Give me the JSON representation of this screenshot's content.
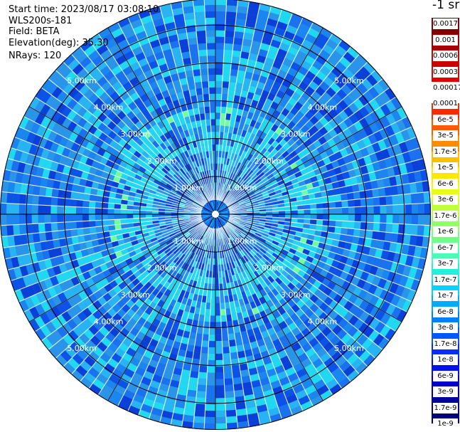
{
  "info": {
    "start_time": "Start time: 2023/08/17 03:08:10",
    "station": "WLS200s-181",
    "field": "Field: BETA",
    "elevation": "Elevation(deg): 35.30",
    "nrays": "NRays: 120"
  },
  "colorbar": {
    "unit": "-1 sr",
    "upper_labels": [
      "0.0017",
      "0.001",
      "0.0006",
      "0.0003",
      "0.00017"
    ],
    "upper_colors": [
      "#7f0000",
      "#a30000",
      "#c80000",
      "#e40000"
    ],
    "lower_labels": [
      "0.0001",
      "6e-5",
      "3e-5",
      "1.7e-5",
      "1e-5",
      "6e-6",
      "3e-6",
      "1.7e-6",
      "1e-6",
      "6e-7",
      "3e-7",
      "1.7e-7",
      "1e-7",
      "6e-8",
      "3e-8",
      "1.7e-8",
      "1e-8",
      "6e-9",
      "3e-9",
      "1.7e-9",
      "1e-9"
    ],
    "lower_colors": [
      "#ff2800",
      "#ff5a00",
      "#ff8c00",
      "#ffbe00",
      "#ffe800",
      "#e8ff10",
      "#c0ff36",
      "#96ff60",
      "#6cff8a",
      "#46ffb4",
      "#20f0dc",
      "#00d4ff",
      "#00aaff",
      "#0080ff",
      "#0058ff",
      "#0030ff",
      "#0010f0",
      "#0000c8",
      "#0000a0",
      "#000080"
    ]
  },
  "chart_data": {
    "type": "heatmap",
    "projection": "polar PPI scan",
    "field": "BETA",
    "elevation_deg": 35.3,
    "n_rays": 120,
    "range_rings": [
      {
        "value": "1.00km"
      },
      {
        "value": "2.00km"
      },
      {
        "value": "3.00km"
      },
      {
        "value": "4.00km"
      },
      {
        "value": "5.00km"
      }
    ],
    "max_range_km": 5.7,
    "spoke_angles_deg": [
      0,
      30,
      60,
      90,
      120,
      150,
      180,
      210,
      240,
      270,
      300,
      330
    ],
    "colors": {
      "background": "#2a95e8",
      "low": "#0a3fd8",
      "mid": "#1a72ee",
      "high": "#22d8f0",
      "peak": "#70ffa0"
    }
  }
}
